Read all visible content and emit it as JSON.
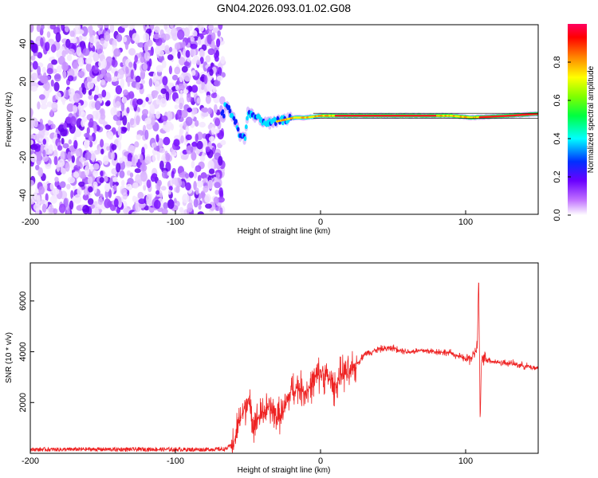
{
  "title": "GN04.2026.093.01.02.G08",
  "chart_data": [
    {
      "type": "heatmap",
      "title": "GN04.2026.093.01.02.G08",
      "xlabel": "Height of straight line (km)",
      "ylabel": "Frequency (Hz)",
      "xlim": [
        -200,
        150
      ],
      "ylim": [
        -50,
        50
      ],
      "x_ticks": [
        -200,
        -100,
        0,
        100
      ],
      "y_ticks": [
        -40,
        -20,
        0,
        20,
        40
      ],
      "noise_region_x": [
        -200,
        -67
      ],
      "grid": false,
      "ridge": {
        "description_points": [
          {
            "x": -66,
            "y": 8
          },
          {
            "x": -62,
            "y": 4
          },
          {
            "x": -58,
            "y": -2
          },
          {
            "x": -56,
            "y": -8
          },
          {
            "x": -52,
            "y": -10
          },
          {
            "x": -50,
            "y": 4
          },
          {
            "x": -46,
            "y": 2
          },
          {
            "x": -42,
            "y": 0
          },
          {
            "x": -36,
            "y": -2
          },
          {
            "x": -30,
            "y": -1
          },
          {
            "x": -24,
            "y": 0
          },
          {
            "x": -18,
            "y": 1
          },
          {
            "x": -10,
            "y": 1
          },
          {
            "x": 0,
            "y": 2
          },
          {
            "x": 20,
            "y": 2
          },
          {
            "x": 60,
            "y": 2
          },
          {
            "x": 90,
            "y": 2
          },
          {
            "x": 104,
            "y": 1
          },
          {
            "x": 130,
            "y": 2
          },
          {
            "x": 150,
            "y": 3
          }
        ]
      },
      "colorbar": {
        "label": "Normalized spectral amplitude",
        "range": [
          0,
          1
        ],
        "ticks": [
          "0.0",
          "0.2",
          "0.4",
          "0.6",
          "0.8"
        ],
        "colormap": [
          "#ffffff",
          "#c070ff",
          "#6a00ff",
          "#0040ff",
          "#00ffff",
          "#00ff40",
          "#80ff00",
          "#ffff00",
          "#ff8000",
          "#ff0000",
          "#ff0060"
        ]
      }
    },
    {
      "type": "line",
      "xlabel": "Height of straight line (km)",
      "ylabel": "SNR (10 * v/v)",
      "xlim": [
        -200,
        150
      ],
      "ylim": [
        0,
        7500
      ],
      "x_ticks": [
        -200,
        -100,
        0,
        100
      ],
      "y_ticks": [
        2000,
        4000,
        6000
      ],
      "line_color": "#ee2222",
      "grid": false,
      "series": [
        {
          "x": [
            -200,
            -180,
            -160,
            -140,
            -120,
            -100,
            -80,
            -65,
            -60,
            -55,
            -52,
            -50,
            -48,
            -45,
            -40,
            -35,
            -30,
            -25,
            -20,
            -15,
            -10,
            -5,
            0,
            5,
            10,
            15,
            20,
            25,
            30,
            40,
            50,
            60,
            70,
            80,
            90,
            100,
            105,
            108,
            109,
            110,
            111,
            112,
            115,
            120,
            130,
            140,
            150
          ],
          "y": [
            150,
            150,
            160,
            150,
            160,
            150,
            150,
            170,
            400,
            1400,
            1800,
            2200,
            1500,
            1200,
            1600,
            1800,
            1400,
            1700,
            2500,
            2600,
            2400,
            2800,
            3200,
            3000,
            2600,
            3200,
            3100,
            3500,
            3900,
            4100,
            4150,
            4000,
            4050,
            4000,
            3950,
            3700,
            3800,
            4200,
            7000,
            1200,
            3700,
            3800,
            3700,
            3600,
            3550,
            3450,
            3350
          ]
        }
      ],
      "noise_amplitudes": {
        "pre_onset": 80,
        "rise": 900,
        "plateau": 180
      }
    }
  ]
}
